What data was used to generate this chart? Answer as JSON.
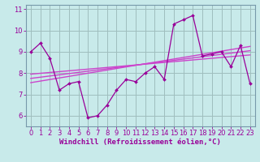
{
  "xlabel": "Windchill (Refroidissement éolien,°C)",
  "bg_color": "#c8eaea",
  "line_color": "#990099",
  "grid_color": "#9fbebe",
  "x_data": [
    0,
    1,
    2,
    3,
    4,
    5,
    6,
    7,
    8,
    9,
    10,
    11,
    12,
    13,
    14,
    15,
    16,
    17,
    18,
    19,
    20,
    21,
    22,
    23
  ],
  "y_data": [
    9.0,
    9.4,
    8.7,
    7.2,
    7.5,
    7.6,
    5.9,
    6.0,
    6.5,
    7.2,
    7.7,
    7.6,
    8.0,
    8.3,
    7.7,
    10.3,
    10.5,
    10.7,
    8.8,
    8.9,
    9.0,
    8.3,
    9.3,
    7.5
  ],
  "ylim": [
    5.5,
    11.2
  ],
  "xlim": [
    -0.5,
    23.5
  ],
  "yticks": [
    6,
    7,
    8,
    9,
    10,
    11
  ],
  "xticks": [
    0,
    1,
    2,
    3,
    4,
    5,
    6,
    7,
    8,
    9,
    10,
    11,
    12,
    13,
    14,
    15,
    16,
    17,
    18,
    19,
    20,
    21,
    22,
    23
  ],
  "trend_color": "#cc44cc",
  "trend_lines": [
    {
      "start_x": 0,
      "start_y": 7.55,
      "end_x": 23,
      "end_y": 9.25
    },
    {
      "start_x": 0,
      "start_y": 7.75,
      "end_x": 23,
      "end_y": 9.05
    },
    {
      "start_x": 0,
      "start_y": 7.95,
      "end_x": 23,
      "end_y": 8.85
    }
  ],
  "tick_fontsize": 6,
  "label_fontsize": 6.5,
  "spine_color": "#7799aa",
  "xlabel_color": "#990099"
}
